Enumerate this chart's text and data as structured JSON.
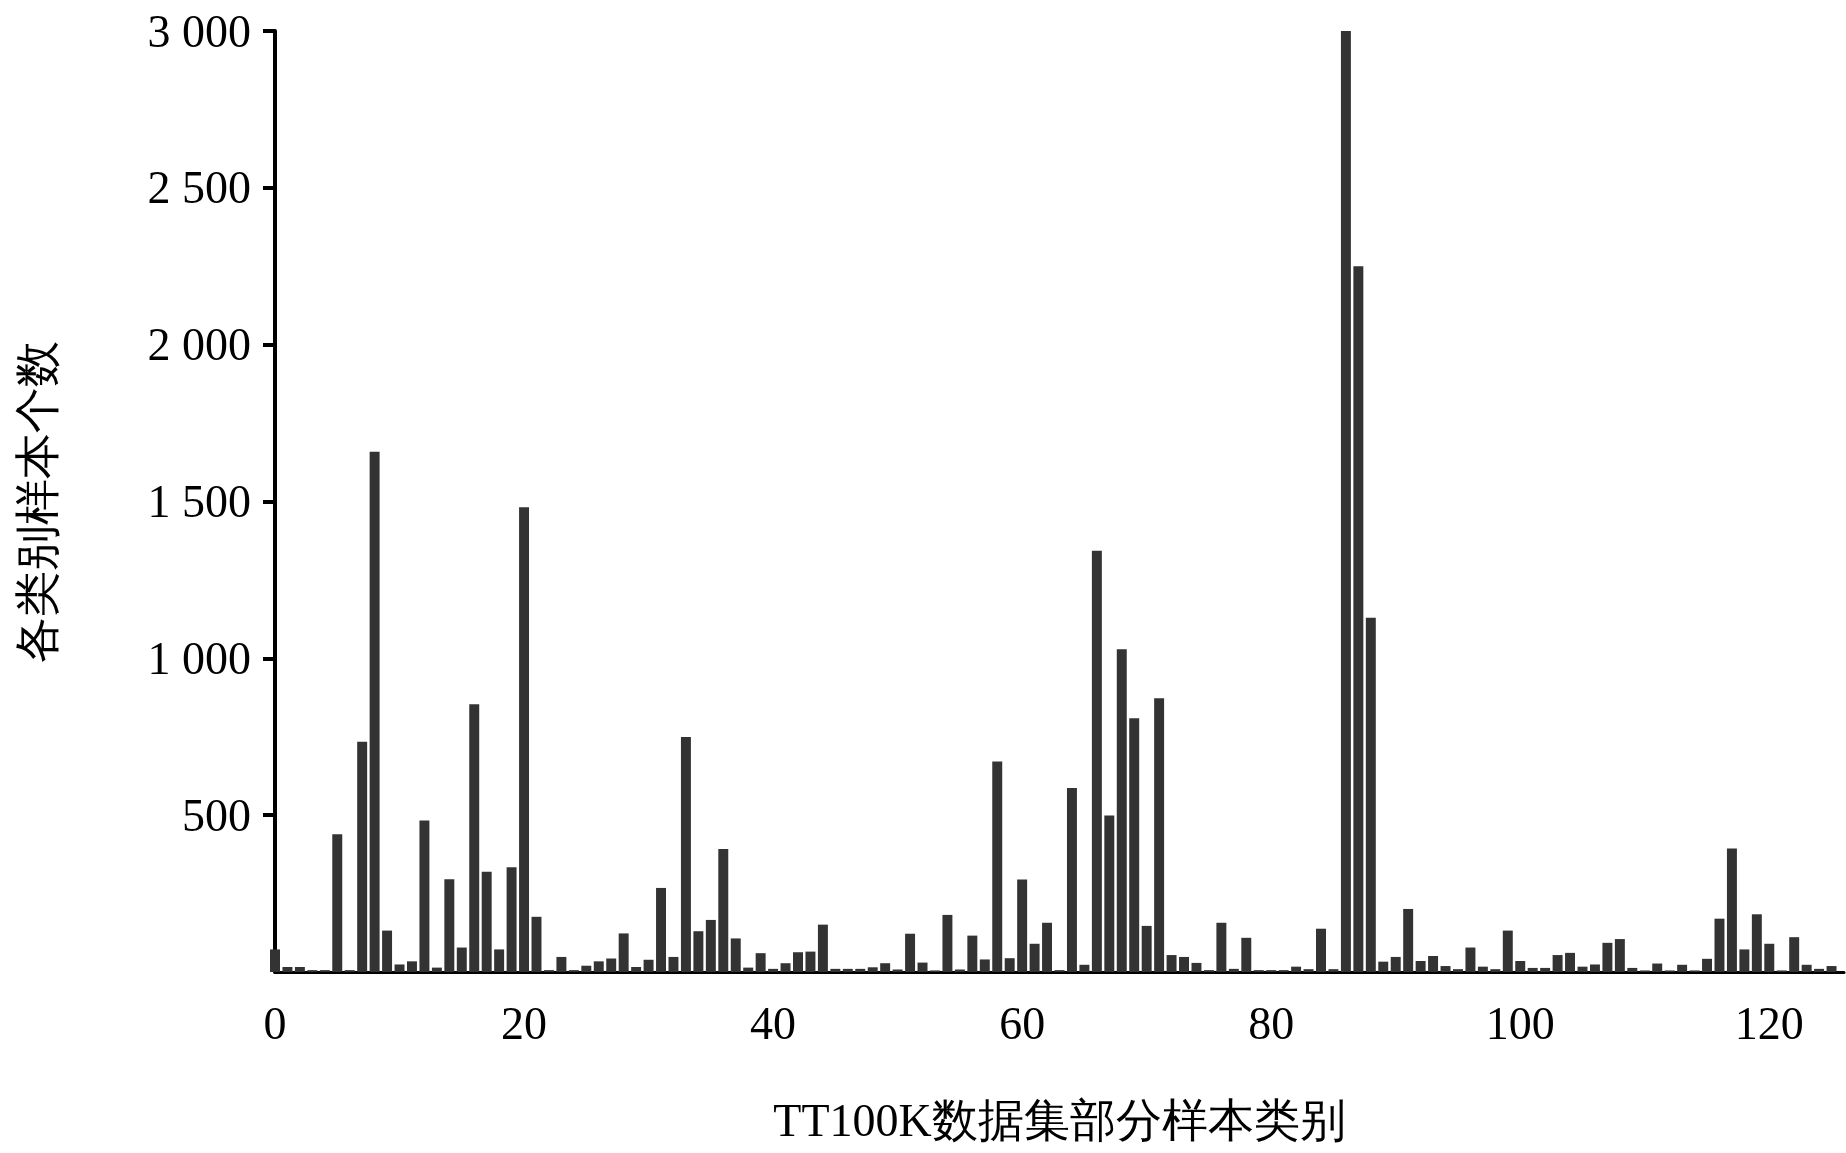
{
  "chart_data": {
    "type": "bar",
    "xlabel": "TT100K数据集部分样本类别",
    "ylabel": "各类别样本个数",
    "color": "#333333",
    "x": [
      0,
      1,
      2,
      3,
      4,
      5,
      6,
      7,
      8,
      9,
      10,
      11,
      12,
      13,
      14,
      15,
      16,
      17,
      18,
      19,
      20,
      21,
      22,
      23,
      24,
      25,
      26,
      27,
      28,
      29,
      30,
      31,
      32,
      33,
      34,
      35,
      36,
      37,
      38,
      39,
      40,
      41,
      42,
      43,
      44,
      45,
      46,
      47,
      48,
      49,
      50,
      51,
      52,
      53,
      54,
      55,
      56,
      57,
      58,
      59,
      60,
      61,
      62,
      63,
      64,
      65,
      66,
      67,
      68,
      69,
      70,
      71,
      72,
      73,
      74,
      75,
      76,
      77,
      78,
      79,
      80,
      81,
      82,
      83,
      84,
      85,
      86,
      87,
      88,
      89,
      90,
      91,
      92,
      93,
      94,
      95,
      96,
      97,
      98,
      99,
      100,
      101,
      102,
      103,
      104,
      105,
      106,
      107,
      108,
      109,
      110,
      111,
      112,
      113,
      114,
      115,
      116,
      117,
      118,
      119,
      120,
      121,
      122,
      123,
      124,
      125
    ],
    "values": [
      72,
      16,
      16,
      6,
      6,
      439,
      6,
      734,
      1659,
      132,
      24,
      34,
      483,
      14,
      296,
      78,
      854,
      320,
      72,
      334,
      1482,
      176,
      6,
      48,
      6,
      20,
      34,
      43,
      123,
      16,
      39,
      268,
      48,
      749,
      130,
      166,
      392,
      107,
      14,
      60,
      10,
      28,
      63,
      65,
      151,
      10,
      10,
      10,
      15,
      28,
      8,
      122,
      30,
      5,
      182,
      8,
      116,
      40,
      671,
      44,
      295,
      90,
      157,
      6,
      587,
      23,
      1343,
      499,
      1029,
      809,
      147,
      873,
      54,
      48,
      29,
      6,
      157,
      10,
      109,
      6,
      6,
      6,
      17,
      9,
      138,
      9,
      3000,
      2250,
      1129,
      33,
      48,
      201,
      35,
      51,
      19,
      9,
      78,
      17,
      9,
      132,
      35,
      13,
      13,
      54,
      61,
      17,
      24,
      93,
      105,
      13,
      5,
      27,
      5,
      23,
      5,
      42,
      170,
      394,
      72,
      184,
      90,
      5,
      111,
      23,
      10,
      19
    ],
    "xlim": [
      0,
      126
    ],
    "xticks": [
      0,
      20,
      40,
      60,
      80,
      100,
      120
    ],
    "ylim": [
      0,
      3000
    ],
    "yticks": [
      {
        "value": 500,
        "label": "500"
      },
      {
        "value": 1000,
        "label": "1 000"
      },
      {
        "value": 1500,
        "label": "1 500"
      },
      {
        "value": 2000,
        "label": "2 000"
      },
      {
        "value": 2500,
        "label": "2 500"
      },
      {
        "value": 3000,
        "label": "3 000"
      }
    ],
    "grid": false
  }
}
